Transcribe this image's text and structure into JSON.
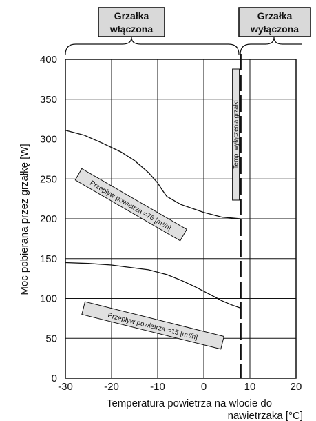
{
  "chart_data": {
    "type": "line",
    "title": "",
    "xlabel_line1": "Temperatura powietrza na wlocie do",
    "xlabel_line2": "nawietrzaka [°C]",
    "ylabel": "Moc pobierana przez grzałkę [W]",
    "xlim": [
      -30,
      20
    ],
    "ylim": [
      0,
      400
    ],
    "x_ticks": [
      -30,
      -20,
      -10,
      0,
      10,
      20
    ],
    "y_ticks": [
      0,
      50,
      100,
      150,
      200,
      250,
      300,
      350,
      400
    ],
    "grid": true,
    "cutoff_x": 8,
    "cutoff_label": "Temp. wyłączenia grzałki",
    "regions": [
      {
        "line1": "Grzałka",
        "line2": "włączona",
        "x_from": -30,
        "x_to": 8
      },
      {
        "line1": "Grzałka",
        "line2": "wyłączona",
        "x_from": 8,
        "x_to": 20
      }
    ],
    "series": [
      {
        "label": "Przepływ powietrza =76 [m³/h]",
        "x": [
          -30,
          -26,
          -22,
          -18,
          -15,
          -12,
          -10,
          -9,
          -8,
          -5,
          -2,
          0,
          2,
          4,
          6,
          8
        ],
        "y": [
          311,
          305,
          295,
          284,
          273,
          258,
          245,
          236,
          228,
          218,
          212,
          208,
          205,
          202,
          201,
          200
        ]
      },
      {
        "label": "Przepływ powietrza =15 [m³/h]",
        "x": [
          -30,
          -25,
          -20,
          -16,
          -12,
          -8,
          -5,
          -2,
          0,
          2,
          4,
          6,
          8
        ],
        "y": [
          145,
          144,
          142,
          139,
          136,
          130,
          123,
          115,
          109,
          103,
          97,
          92,
          88
        ]
      }
    ]
  }
}
